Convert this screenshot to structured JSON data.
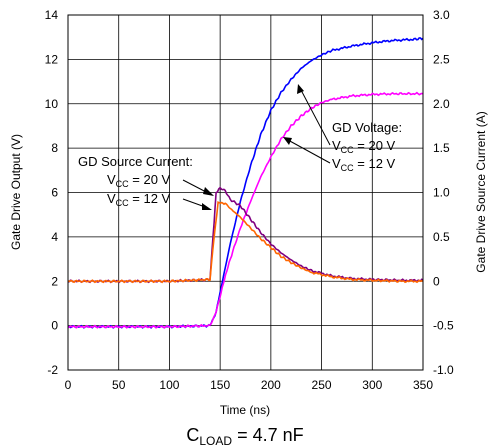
{
  "chart_data": {
    "type": "line",
    "x": {
      "label": "Time (ns)",
      "range": [
        0,
        350
      ],
      "ticks": [
        0,
        50,
        100,
        150,
        200,
        250,
        300,
        350
      ]
    },
    "y_left": {
      "label": "Gate Drive Output (V)",
      "range": [
        -2,
        14
      ],
      "ticks": [
        -2,
        0,
        2,
        4,
        6,
        8,
        10,
        12,
        14
      ]
    },
    "y_right": {
      "label": "Gate Drive Source Current (A)",
      "range": [
        -1.0,
        3.0
      ],
      "tick_labels": [
        "-1.0",
        "-0.5",
        "0",
        "0.5",
        "1.0",
        "1.5",
        "2.0",
        "2.5",
        "3.0"
      ]
    },
    "grid": true,
    "caption": {
      "main": "C",
      "sub": "LOAD",
      "rest": " = 4.7 nF"
    },
    "series": [
      {
        "axis": "left",
        "color": "#0000ff",
        "points": [
          [
            0,
            -0.05
          ],
          [
            100,
            -0.05
          ],
          [
            140,
            0.0
          ],
          [
            146,
            0.6
          ],
          [
            150,
            1.5
          ],
          [
            155,
            2.6
          ],
          [
            160,
            3.7
          ],
          [
            170,
            5.6
          ],
          [
            180,
            7.2
          ],
          [
            190,
            8.6
          ],
          [
            200,
            9.7
          ],
          [
            210,
            10.5
          ],
          [
            220,
            11.1
          ],
          [
            230,
            11.6
          ],
          [
            240,
            11.95
          ],
          [
            250,
            12.2
          ],
          [
            260,
            12.4
          ],
          [
            280,
            12.6
          ],
          [
            300,
            12.75
          ],
          [
            320,
            12.85
          ],
          [
            340,
            12.9
          ],
          [
            350,
            12.95
          ]
        ]
      },
      {
        "axis": "left",
        "color": "#ff00ff",
        "points": [
          [
            0,
            -0.05
          ],
          [
            100,
            -0.05
          ],
          [
            140,
            0.0
          ],
          [
            146,
            0.6
          ],
          [
            152,
            1.7
          ],
          [
            160,
            3.0
          ],
          [
            170,
            4.4
          ],
          [
            180,
            5.6
          ],
          [
            190,
            6.7
          ],
          [
            200,
            7.6
          ],
          [
            210,
            8.4
          ],
          [
            220,
            9.0
          ],
          [
            230,
            9.45
          ],
          [
            240,
            9.8
          ],
          [
            250,
            10.05
          ],
          [
            260,
            10.2
          ],
          [
            280,
            10.35
          ],
          [
            300,
            10.42
          ],
          [
            320,
            10.45
          ],
          [
            350,
            10.45
          ]
        ]
      },
      {
        "axis": "right",
        "color": "#800080",
        "points": [
          [
            0,
            0.0
          ],
          [
            100,
            0.0
          ],
          [
            140,
            0.02
          ],
          [
            143,
            0.5
          ],
          [
            146,
            1.0
          ],
          [
            150,
            1.05
          ],
          [
            155,
            1.02
          ],
          [
            160,
            0.92
          ],
          [
            170,
            0.85
          ],
          [
            180,
            0.7
          ],
          [
            190,
            0.55
          ],
          [
            200,
            0.42
          ],
          [
            210,
            0.32
          ],
          [
            220,
            0.24
          ],
          [
            230,
            0.17
          ],
          [
            240,
            0.12
          ],
          [
            260,
            0.06
          ],
          [
            280,
            0.03
          ],
          [
            300,
            0.02
          ],
          [
            330,
            0.01
          ],
          [
            350,
            0.01
          ]
        ]
      },
      {
        "axis": "right",
        "color": "#ff6600",
        "points": [
          [
            0,
            0.0
          ],
          [
            100,
            0.0
          ],
          [
            140,
            0.02
          ],
          [
            144,
            0.5
          ],
          [
            148,
            0.88
          ],
          [
            155,
            0.88
          ],
          [
            160,
            0.82
          ],
          [
            170,
            0.72
          ],
          [
            180,
            0.6
          ],
          [
            190,
            0.48
          ],
          [
            200,
            0.38
          ],
          [
            210,
            0.28
          ],
          [
            220,
            0.21
          ],
          [
            230,
            0.15
          ],
          [
            240,
            0.1
          ],
          [
            260,
            0.05
          ],
          [
            280,
            0.02
          ],
          [
            300,
            0.01
          ],
          [
            330,
            0.0
          ],
          [
            350,
            0.0
          ]
        ]
      }
    ],
    "annotations": [
      {
        "lines": [
          "GD Source Current:",
          "V",
          "V"
        ],
        "vcc": [
          {
            "sub": "CC",
            "val": " = 20 V"
          },
          {
            "sub": "CC",
            "val": " = 12 V"
          }
        ],
        "heading": "GD Source Current:"
      },
      {
        "heading": "GD Voltage:",
        "vcc": [
          {
            "sub": "CC",
            "val": " = 20 V"
          },
          {
            "sub": "CC",
            "val": " = 12 V"
          }
        ]
      }
    ]
  }
}
